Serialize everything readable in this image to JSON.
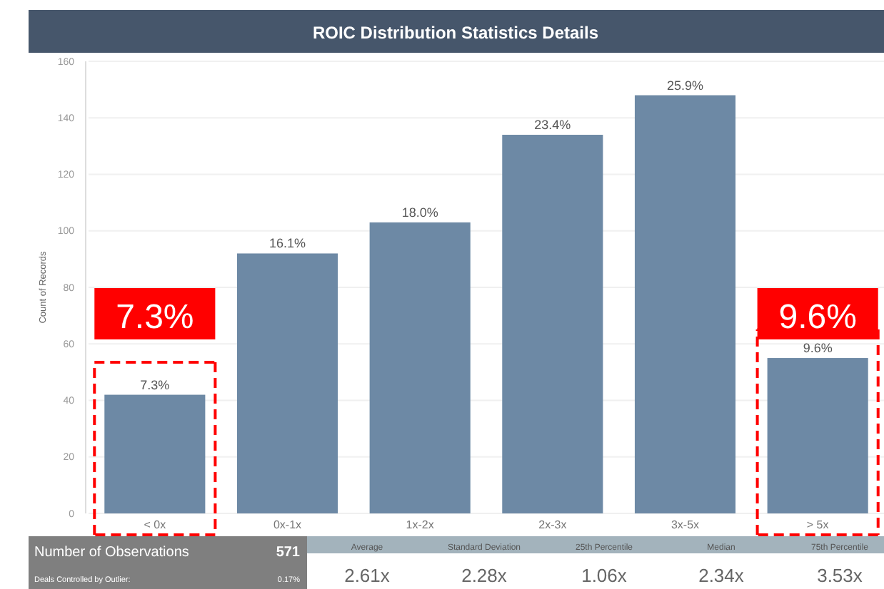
{
  "chart_data": {
    "type": "bar",
    "title": "ROIC Distribution Statistics Details",
    "ylabel": "Count of Records",
    "categories": [
      "< 0x",
      "0x-1x",
      "1x-2x",
      "2x-3x",
      "3x-5x",
      "> 5x"
    ],
    "values": [
      42,
      92,
      103,
      134,
      148,
      55
    ],
    "color": "#6d89a5",
    "ylim": [
      0,
      160
    ],
    "yticks": [
      0,
      20,
      40,
      60,
      80,
      100,
      120,
      140,
      160
    ],
    "grid": "y",
    "annotations": [
      {
        "text": "7.3%",
        "x": "< 0x",
        "y": 42
      },
      {
        "text": "16.1%",
        "x": "0x-1x",
        "y": 92
      },
      {
        "text": "18.0%",
        "x": "1x-2x",
        "y": 103
      },
      {
        "text": "23.4%",
        "x": "2x-3x",
        "y": 134
      },
      {
        "text": "25.9%",
        "x": "3x-5x",
        "y": 148
      },
      {
        "text": "9.6%",
        "x": "> 5x",
        "y": 55
      },
      "7.3%",
      "9.6%",
      "Number of Observations",
      "571",
      "Deals Controlled by Outlier:",
      "0.17%",
      "Average",
      "Standard Deviation",
      "25th Percentile",
      "Median",
      "75th Percentile",
      "2.61x",
      "2.28x",
      "1.06x",
      "2.34x",
      "3.53x"
    ]
  }
}
